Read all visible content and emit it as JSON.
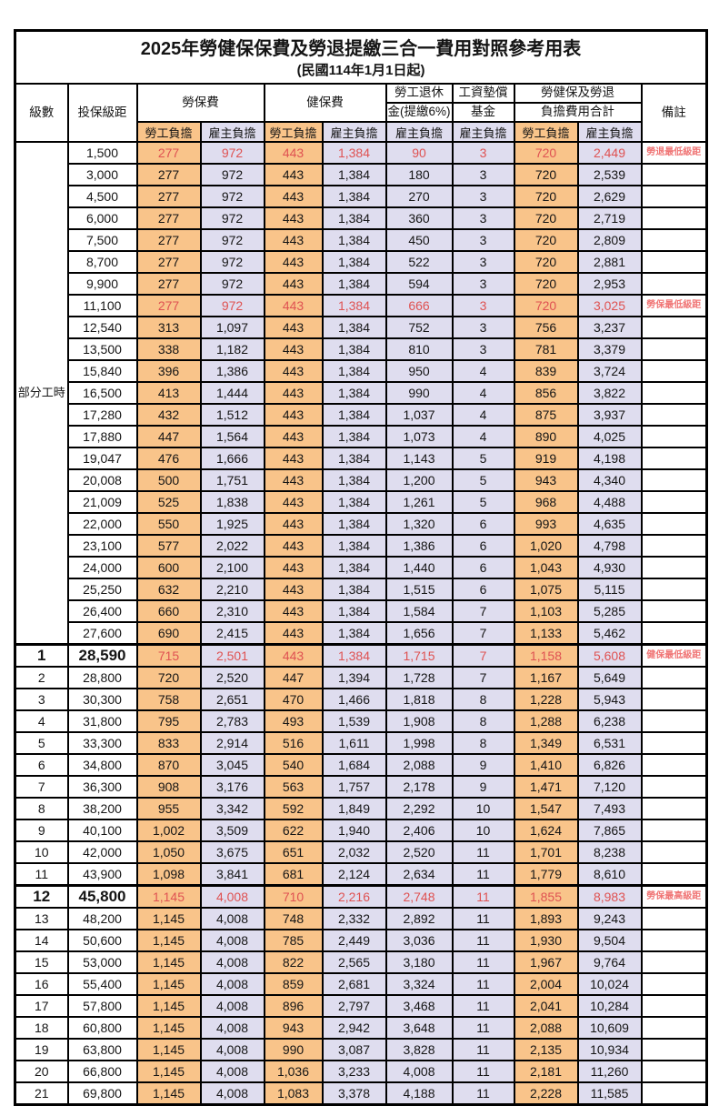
{
  "title": "2025年勞健保保費及勞退提繳三合一費用對照參考用表",
  "subtitle": "(民國114年1月1日起)",
  "header": {
    "level": "級數",
    "bracket": "投保級距",
    "labor_insurance": "勞保費",
    "health_insurance": "健保費",
    "pension_line1": "勞工退休",
    "pension_line2": "金(提繳6%)",
    "wage_fund_line1": "工資墊償",
    "wage_fund_line2": "基金",
    "total_line1": "勞健保及勞退",
    "total_line2": "負擔費用合計",
    "remark": "備註",
    "employee_share": "勞工負擔",
    "employer_share": "雇主負擔"
  },
  "part_time_label": "部分工時",
  "part_time_row_count": 23,
  "colors": {
    "employee_bg": "#F9C48A",
    "employer_bg": "#DFDDEF",
    "highlight_value_text": "#DF5252",
    "remark_text": "#F07575",
    "grid": "#000000"
  },
  "rows": [
    {
      "level": "",
      "bracket": "1,500",
      "values": [
        "277",
        "972",
        "443",
        "1,384",
        "90",
        "3",
        "720",
        "2,449"
      ],
      "remark": "勞退最低級距",
      "highlight": true,
      "big": false
    },
    {
      "level": "",
      "bracket": "3,000",
      "values": [
        "277",
        "972",
        "443",
        "1,384",
        "180",
        "3",
        "720",
        "2,539"
      ],
      "remark": "",
      "highlight": false,
      "big": false
    },
    {
      "level": "",
      "bracket": "4,500",
      "values": [
        "277",
        "972",
        "443",
        "1,384",
        "270",
        "3",
        "720",
        "2,629"
      ],
      "remark": "",
      "highlight": false,
      "big": false
    },
    {
      "level": "",
      "bracket": "6,000",
      "values": [
        "277",
        "972",
        "443",
        "1,384",
        "360",
        "3",
        "720",
        "2,719"
      ],
      "remark": "",
      "highlight": false,
      "big": false
    },
    {
      "level": "",
      "bracket": "7,500",
      "values": [
        "277",
        "972",
        "443",
        "1,384",
        "450",
        "3",
        "720",
        "2,809"
      ],
      "remark": "",
      "highlight": false,
      "big": false
    },
    {
      "level": "",
      "bracket": "8,700",
      "values": [
        "277",
        "972",
        "443",
        "1,384",
        "522",
        "3",
        "720",
        "2,881"
      ],
      "remark": "",
      "highlight": false,
      "big": false
    },
    {
      "level": "",
      "bracket": "9,900",
      "values": [
        "277",
        "972",
        "443",
        "1,384",
        "594",
        "3",
        "720",
        "2,953"
      ],
      "remark": "",
      "highlight": false,
      "big": false
    },
    {
      "level": "",
      "bracket": "11,100",
      "values": [
        "277",
        "972",
        "443",
        "1,384",
        "666",
        "3",
        "720",
        "3,025"
      ],
      "remark": "勞保最低級距",
      "highlight": true,
      "big": false
    },
    {
      "level": "",
      "bracket": "12,540",
      "values": [
        "313",
        "1,097",
        "443",
        "1,384",
        "752",
        "3",
        "756",
        "3,237"
      ],
      "remark": "",
      "highlight": false,
      "big": false
    },
    {
      "level": "",
      "bracket": "13,500",
      "values": [
        "338",
        "1,182",
        "443",
        "1,384",
        "810",
        "3",
        "781",
        "3,379"
      ],
      "remark": "",
      "highlight": false,
      "big": false
    },
    {
      "level": "",
      "bracket": "15,840",
      "values": [
        "396",
        "1,386",
        "443",
        "1,384",
        "950",
        "4",
        "839",
        "3,724"
      ],
      "remark": "",
      "highlight": false,
      "big": false
    },
    {
      "level": "",
      "bracket": "16,500",
      "values": [
        "413",
        "1,444",
        "443",
        "1,384",
        "990",
        "4",
        "856",
        "3,822"
      ],
      "remark": "",
      "highlight": false,
      "big": false
    },
    {
      "level": "",
      "bracket": "17,280",
      "values": [
        "432",
        "1,512",
        "443",
        "1,384",
        "1,037",
        "4",
        "875",
        "3,937"
      ],
      "remark": "",
      "highlight": false,
      "big": false
    },
    {
      "level": "",
      "bracket": "17,880",
      "values": [
        "447",
        "1,564",
        "443",
        "1,384",
        "1,073",
        "4",
        "890",
        "4,025"
      ],
      "remark": "",
      "highlight": false,
      "big": false
    },
    {
      "level": "",
      "bracket": "19,047",
      "values": [
        "476",
        "1,666",
        "443",
        "1,384",
        "1,143",
        "5",
        "919",
        "4,198"
      ],
      "remark": "",
      "highlight": false,
      "big": false
    },
    {
      "level": "",
      "bracket": "20,008",
      "values": [
        "500",
        "1,751",
        "443",
        "1,384",
        "1,200",
        "5",
        "943",
        "4,340"
      ],
      "remark": "",
      "highlight": false,
      "big": false
    },
    {
      "level": "",
      "bracket": "21,009",
      "values": [
        "525",
        "1,838",
        "443",
        "1,384",
        "1,261",
        "5",
        "968",
        "4,488"
      ],
      "remark": "",
      "highlight": false,
      "big": false
    },
    {
      "level": "",
      "bracket": "22,000",
      "values": [
        "550",
        "1,925",
        "443",
        "1,384",
        "1,320",
        "6",
        "993",
        "4,635"
      ],
      "remark": "",
      "highlight": false,
      "big": false
    },
    {
      "level": "",
      "bracket": "23,100",
      "values": [
        "577",
        "2,022",
        "443",
        "1,384",
        "1,386",
        "6",
        "1,020",
        "4,798"
      ],
      "remark": "",
      "highlight": false,
      "big": false
    },
    {
      "level": "",
      "bracket": "24,000",
      "values": [
        "600",
        "2,100",
        "443",
        "1,384",
        "1,440",
        "6",
        "1,043",
        "4,930"
      ],
      "remark": "",
      "highlight": false,
      "big": false
    },
    {
      "level": "",
      "bracket": "25,250",
      "values": [
        "632",
        "2,210",
        "443",
        "1,384",
        "1,515",
        "6",
        "1,075",
        "5,115"
      ],
      "remark": "",
      "highlight": false,
      "big": false
    },
    {
      "level": "",
      "bracket": "26,400",
      "values": [
        "660",
        "2,310",
        "443",
        "1,384",
        "1,584",
        "7",
        "1,103",
        "5,285"
      ],
      "remark": "",
      "highlight": false,
      "big": false
    },
    {
      "level": "",
      "bracket": "27,600",
      "values": [
        "690",
        "2,415",
        "443",
        "1,384",
        "1,656",
        "7",
        "1,133",
        "5,462"
      ],
      "remark": "",
      "highlight": false,
      "big": false
    },
    {
      "level": "1",
      "bracket": "28,590",
      "values": [
        "715",
        "2,501",
        "443",
        "1,384",
        "1,715",
        "7",
        "1,158",
        "5,608"
      ],
      "remark": "健保最低級距",
      "highlight": true,
      "big": true
    },
    {
      "level": "2",
      "bracket": "28,800",
      "values": [
        "720",
        "2,520",
        "447",
        "1,394",
        "1,728",
        "7",
        "1,167",
        "5,649"
      ],
      "remark": "",
      "highlight": false,
      "big": false
    },
    {
      "level": "3",
      "bracket": "30,300",
      "values": [
        "758",
        "2,651",
        "470",
        "1,466",
        "1,818",
        "8",
        "1,228",
        "5,943"
      ],
      "remark": "",
      "highlight": false,
      "big": false
    },
    {
      "level": "4",
      "bracket": "31,800",
      "values": [
        "795",
        "2,783",
        "493",
        "1,539",
        "1,908",
        "8",
        "1,288",
        "6,238"
      ],
      "remark": "",
      "highlight": false,
      "big": false
    },
    {
      "level": "5",
      "bracket": "33,300",
      "values": [
        "833",
        "2,914",
        "516",
        "1,611",
        "1,998",
        "8",
        "1,349",
        "6,531"
      ],
      "remark": "",
      "highlight": false,
      "big": false
    },
    {
      "level": "6",
      "bracket": "34,800",
      "values": [
        "870",
        "3,045",
        "540",
        "1,684",
        "2,088",
        "9",
        "1,410",
        "6,826"
      ],
      "remark": "",
      "highlight": false,
      "big": false
    },
    {
      "level": "7",
      "bracket": "36,300",
      "values": [
        "908",
        "3,176",
        "563",
        "1,757",
        "2,178",
        "9",
        "1,471",
        "7,120"
      ],
      "remark": "",
      "highlight": false,
      "big": false
    },
    {
      "level": "8",
      "bracket": "38,200",
      "values": [
        "955",
        "3,342",
        "592",
        "1,849",
        "2,292",
        "10",
        "1,547",
        "7,493"
      ],
      "remark": "",
      "highlight": false,
      "big": false
    },
    {
      "level": "9",
      "bracket": "40,100",
      "values": [
        "1,002",
        "3,509",
        "622",
        "1,940",
        "2,406",
        "10",
        "1,624",
        "7,865"
      ],
      "remark": "",
      "highlight": false,
      "big": false
    },
    {
      "level": "10",
      "bracket": "42,000",
      "values": [
        "1,050",
        "3,675",
        "651",
        "2,032",
        "2,520",
        "11",
        "1,701",
        "8,238"
      ],
      "remark": "",
      "highlight": false,
      "big": false
    },
    {
      "level": "11",
      "bracket": "43,900",
      "values": [
        "1,098",
        "3,841",
        "681",
        "2,124",
        "2,634",
        "11",
        "1,779",
        "8,610"
      ],
      "remark": "",
      "highlight": false,
      "big": false
    },
    {
      "level": "12",
      "bracket": "45,800",
      "values": [
        "1,145",
        "4,008",
        "710",
        "2,216",
        "2,748",
        "11",
        "1,855",
        "8,983"
      ],
      "remark": "勞保最高級距",
      "highlight": true,
      "big": true
    },
    {
      "level": "13",
      "bracket": "48,200",
      "values": [
        "1,145",
        "4,008",
        "748",
        "2,332",
        "2,892",
        "11",
        "1,893",
        "9,243"
      ],
      "remark": "",
      "highlight": false,
      "big": false
    },
    {
      "level": "14",
      "bracket": "50,600",
      "values": [
        "1,145",
        "4,008",
        "785",
        "2,449",
        "3,036",
        "11",
        "1,930",
        "9,504"
      ],
      "remark": "",
      "highlight": false,
      "big": false
    },
    {
      "level": "15",
      "bracket": "53,000",
      "values": [
        "1,145",
        "4,008",
        "822",
        "2,565",
        "3,180",
        "11",
        "1,967",
        "9,764"
      ],
      "remark": "",
      "highlight": false,
      "big": false
    },
    {
      "level": "16",
      "bracket": "55,400",
      "values": [
        "1,145",
        "4,008",
        "859",
        "2,681",
        "3,324",
        "11",
        "2,004",
        "10,024"
      ],
      "remark": "",
      "highlight": false,
      "big": false
    },
    {
      "level": "17",
      "bracket": "57,800",
      "values": [
        "1,145",
        "4,008",
        "896",
        "2,797",
        "3,468",
        "11",
        "2,041",
        "10,284"
      ],
      "remark": "",
      "highlight": false,
      "big": false
    },
    {
      "level": "18",
      "bracket": "60,800",
      "values": [
        "1,145",
        "4,008",
        "943",
        "2,942",
        "3,648",
        "11",
        "2,088",
        "10,609"
      ],
      "remark": "",
      "highlight": false,
      "big": false
    },
    {
      "level": "19",
      "bracket": "63,800",
      "values": [
        "1,145",
        "4,008",
        "990",
        "3,087",
        "3,828",
        "11",
        "2,135",
        "10,934"
      ],
      "remark": "",
      "highlight": false,
      "big": false
    },
    {
      "level": "20",
      "bracket": "66,800",
      "values": [
        "1,145",
        "4,008",
        "1,036",
        "3,233",
        "4,008",
        "11",
        "2,181",
        "11,260"
      ],
      "remark": "",
      "highlight": false,
      "big": false
    },
    {
      "level": "21",
      "bracket": "69,800",
      "values": [
        "1,145",
        "4,008",
        "1,083",
        "3,378",
        "4,188",
        "11",
        "2,228",
        "11,585"
      ],
      "remark": "",
      "highlight": false,
      "big": false
    }
  ]
}
